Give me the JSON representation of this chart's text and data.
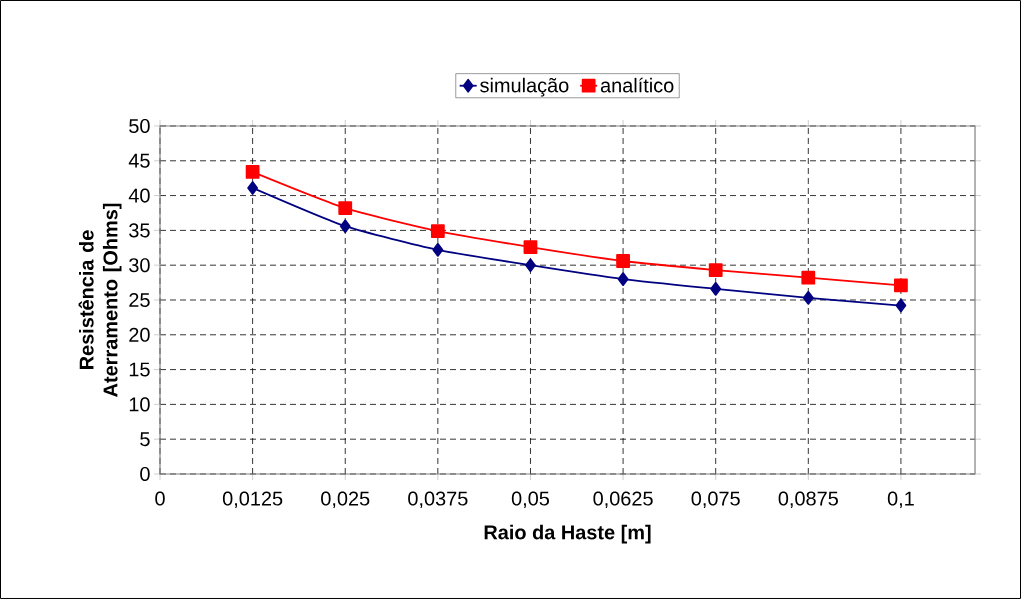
{
  "chart_data": {
    "type": "line",
    "xlabel": "Raio da Haste [m]",
    "ylabel": "Resistência de Aterramento [Ohms]",
    "x": [
      0.0125,
      0.025,
      0.0375,
      0.05,
      0.0625,
      0.075,
      0.0875,
      0.1
    ],
    "series": [
      {
        "name": "simulação",
        "color": "#000080",
        "marker": "diamond",
        "values": [
          41.1,
          35.6,
          32.2,
          30.0,
          28.0,
          26.6,
          25.3,
          24.2
        ]
      },
      {
        "name": "analítico",
        "color": "#ff0000",
        "marker": "square",
        "values": [
          43.4,
          38.2,
          34.9,
          32.6,
          30.6,
          29.3,
          28.2,
          27.1
        ]
      }
    ],
    "xlim": [
      0,
      0.11
    ],
    "xticks": [
      0,
      {
        "value": 0.0125,
        "label": "0,0125"
      },
      {
        "value": 0.025,
        "label": "0,025"
      },
      {
        "value": 0.0375,
        "label": "0,0375"
      },
      {
        "value": 0.05,
        "label": "0,05"
      },
      {
        "value": 0.0625,
        "label": "0,0625"
      },
      {
        "value": 0.075,
        "label": "0,075"
      },
      {
        "value": 0.0875,
        "label": "0,0875"
      },
      {
        "value": 0.1,
        "label": "0,1"
      }
    ],
    "ylim": [
      0,
      50
    ],
    "yticks": [
      0,
      5,
      10,
      15,
      20,
      25,
      30,
      35,
      40,
      45,
      50
    ],
    "grid": true,
    "legend": "top",
    "line_style": "solid"
  }
}
